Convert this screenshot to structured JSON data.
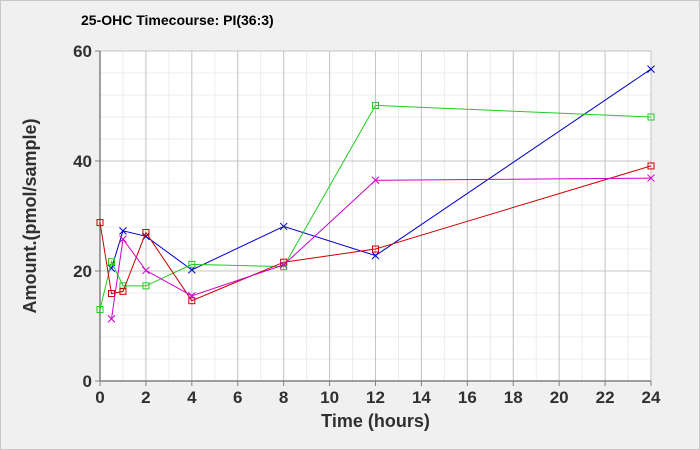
{
  "chart_data": {
    "type": "line",
    "title": "25-OHC Timecourse: PI(36:3)",
    "xlabel": "Time (hours)",
    "ylabel": "Amount.(pmol/sample)",
    "xlim": [
      0,
      24
    ],
    "ylim": [
      0,
      60
    ],
    "xticks": [
      0,
      2,
      4,
      6,
      8,
      10,
      12,
      14,
      16,
      18,
      20,
      22,
      24
    ],
    "yticks": [
      0,
      20,
      40,
      60
    ],
    "x_minor_step": 1,
    "y_minor_step": 4,
    "grid": true,
    "legend": false,
    "series": [
      {
        "color": "#0000cc",
        "marker": "x",
        "x": [
          0.5,
          1,
          2,
          4,
          8,
          12,
          24
        ],
        "y": [
          20.5,
          27.3,
          26.3,
          20.2,
          28.1,
          22.8,
          56.7
        ]
      },
      {
        "color": "#22cc22",
        "marker": "square",
        "x": [
          0,
          0.5,
          1,
          2,
          4,
          8,
          12,
          24
        ],
        "y": [
          13.0,
          21.7,
          17.3,
          17.3,
          21.2,
          20.8,
          50.1,
          48.0
        ]
      },
      {
        "color": "#cc0000",
        "marker": "square",
        "x": [
          0,
          0.5,
          1,
          2,
          4,
          8,
          12,
          24
        ],
        "y": [
          28.8,
          15.9,
          16.3,
          27.0,
          14.6,
          21.6,
          24.0,
          39.1
        ]
      },
      {
        "color": "#cc00cc",
        "marker": "x",
        "x": [
          0.5,
          1,
          2,
          4,
          8,
          12,
          24
        ],
        "y": [
          11.3,
          25.8,
          20.1,
          15.5,
          21.1,
          36.5,
          36.9
        ]
      }
    ]
  }
}
